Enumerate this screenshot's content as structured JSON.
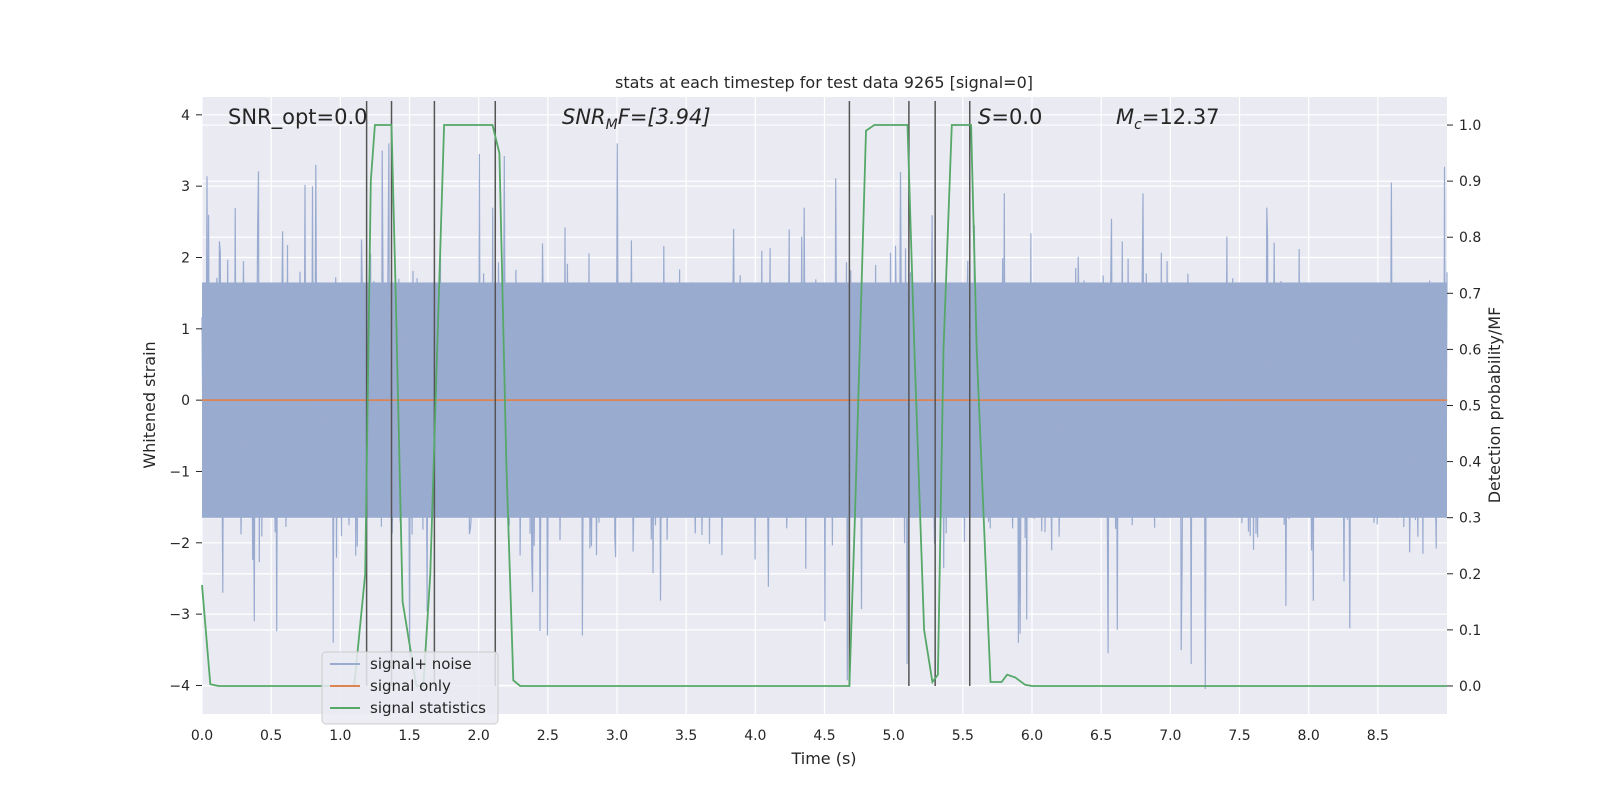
{
  "chart_data": {
    "type": "line",
    "title": "stats at each timestep for test data 9265 [signal=0]",
    "xlabel": "Time (s)",
    "ylabel": "Whitened strain",
    "y2label": "Detection probability/MF",
    "xlim": [
      0,
      9
    ],
    "ylim": [
      -4.4,
      4.25
    ],
    "y2lim": [
      -0.05,
      1.05
    ],
    "xticks": [
      "0.0",
      "0.5",
      "1.0",
      "1.5",
      "2.0",
      "2.5",
      "3.0",
      "3.5",
      "4.0",
      "4.5",
      "5.0",
      "5.5",
      "6.0",
      "6.5",
      "7.0",
      "7.5",
      "8.0",
      "8.5"
    ],
    "yticks": [
      "4",
      "3",
      "2",
      "1",
      "0",
      "−1",
      "−2",
      "−3",
      "−4"
    ],
    "y2ticks": [
      "1.0",
      "0.9",
      "0.8",
      "0.7",
      "0.6",
      "0.5",
      "0.4",
      "0.3",
      "0.2",
      "0.1",
      "0.0"
    ],
    "grid": true,
    "legend_position": "lower-left",
    "annotations": {
      "snr_opt": "SNR_opt=0.0",
      "snr_mf_base": "SNR",
      "snr_mf_sub": "M",
      "snr_mf_rest": "F=[3.94]",
      "s_label": "S",
      "s_value": "=0.0",
      "mc_base": "M",
      "mc_sub": "c",
      "mc_value": "=12.37"
    },
    "series": [
      {
        "name": "signal+ noise",
        "color": "#9aabd0",
        "axis": "left",
        "kind": "dense noise trace",
        "envelope": 1.65,
        "spike_peaks": [
          [
            0.05,
            2.6
          ],
          [
            0.4,
            2.4
          ],
          [
            0.8,
            3.0
          ],
          [
            0.82,
            3.3
          ],
          [
            1.3,
            3.5
          ],
          [
            1.35,
            3.6
          ],
          [
            2.1,
            2.7
          ],
          [
            3.0,
            3.6
          ],
          [
            4.35,
            2.7
          ],
          [
            5.05,
            3.2
          ],
          [
            5.8,
            2.9
          ],
          [
            6.8,
            2.9
          ],
          [
            7.7,
            2.7
          ],
          [
            8.6,
            3.05
          ]
        ],
        "trough_peaks": [
          [
            0.15,
            -2.7
          ],
          [
            0.38,
            -3.1
          ],
          [
            0.95,
            -3.4
          ],
          [
            1.5,
            -3.6
          ],
          [
            2.5,
            -3.3
          ],
          [
            2.75,
            -3.3
          ],
          [
            4.5,
            -3.1
          ],
          [
            5.1,
            -3.7
          ],
          [
            5.9,
            -3.4
          ],
          [
            6.55,
            -3.55
          ],
          [
            7.15,
            -3.7
          ],
          [
            7.25,
            -4.05
          ],
          [
            8.3,
            -3.2
          ]
        ]
      },
      {
        "name": "signal only",
        "color": "#dd8452",
        "axis": "left",
        "x": [
          0,
          9
        ],
        "y": [
          0,
          0
        ]
      },
      {
        "name": "signal statistics",
        "color": "#55a868",
        "axis": "right",
        "x": [
          0.0,
          0.06,
          0.12,
          0.5,
          1.0,
          1.1,
          1.18,
          1.22,
          1.25,
          1.37,
          1.4,
          1.45,
          1.55,
          1.6,
          1.65,
          1.75,
          1.85,
          2.05,
          2.1,
          2.15,
          2.2,
          2.25,
          2.3,
          4.68,
          4.72,
          4.8,
          4.86,
          5.0,
          5.1,
          5.15,
          5.22,
          5.28,
          5.32,
          5.36,
          5.42,
          5.5,
          5.56,
          5.6,
          5.7,
          5.78,
          5.82,
          5.88,
          5.95,
          6.0,
          9.0
        ],
        "y": [
          0.18,
          0.003,
          0.0,
          0.0,
          0.0,
          0.0,
          0.2,
          0.9,
          1.0,
          1.0,
          0.7,
          0.15,
          0.0,
          0.0,
          0.2,
          1.0,
          1.0,
          1.0,
          1.0,
          0.95,
          0.4,
          0.01,
          0.0,
          0.0,
          0.3,
          0.99,
          1.0,
          1.0,
          1.0,
          0.6,
          0.1,
          0.007,
          0.02,
          0.6,
          1.0,
          1.0,
          1.0,
          0.6,
          0.007,
          0.007,
          0.02,
          0.015,
          0.002,
          0.0,
          0.0
        ]
      }
    ],
    "vertical_markers": {
      "color": "#555555",
      "x": [
        1.19,
        1.37,
        1.68,
        2.12,
        4.68,
        5.11,
        5.3,
        5.55
      ]
    }
  }
}
